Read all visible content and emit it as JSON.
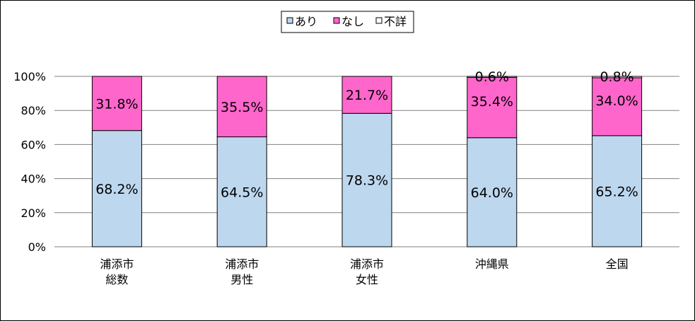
{
  "chart_data": {
    "type": "bar",
    "stacked": true,
    "percent": true,
    "categories": [
      [
        "浦添市",
        "総数"
      ],
      [
        "浦添市",
        "男性"
      ],
      [
        "浦添市",
        "女性"
      ],
      [
        "沖縄県"
      ],
      [
        "全国"
      ]
    ],
    "series": [
      {
        "name": "あり",
        "color": "#bdd7ee",
        "values": [
          68.2,
          64.5,
          78.3,
          64.0,
          65.2
        ],
        "labels": [
          "68.2%",
          "64.5%",
          "78.3%",
          "64.0%",
          "65.2%"
        ]
      },
      {
        "name": "なし",
        "color": "#ff66cc",
        "values": [
          31.8,
          35.5,
          21.7,
          35.4,
          34.0
        ],
        "labels": [
          "31.8%",
          "35.5%",
          "21.7%",
          "35.4%",
          "34.0%"
        ]
      },
      {
        "name": "不詳",
        "color": "#ffffff",
        "values": [
          0,
          0,
          0,
          0.6,
          0.8
        ],
        "labels": [
          "",
          "",
          "",
          "0.6%",
          "0.8%"
        ]
      }
    ],
    "ylim": [
      0,
      100
    ],
    "yticks": [
      "0%",
      "20%",
      "40%",
      "60%",
      "80%",
      "100%"
    ],
    "grid": true,
    "legend_position": "top-center"
  }
}
